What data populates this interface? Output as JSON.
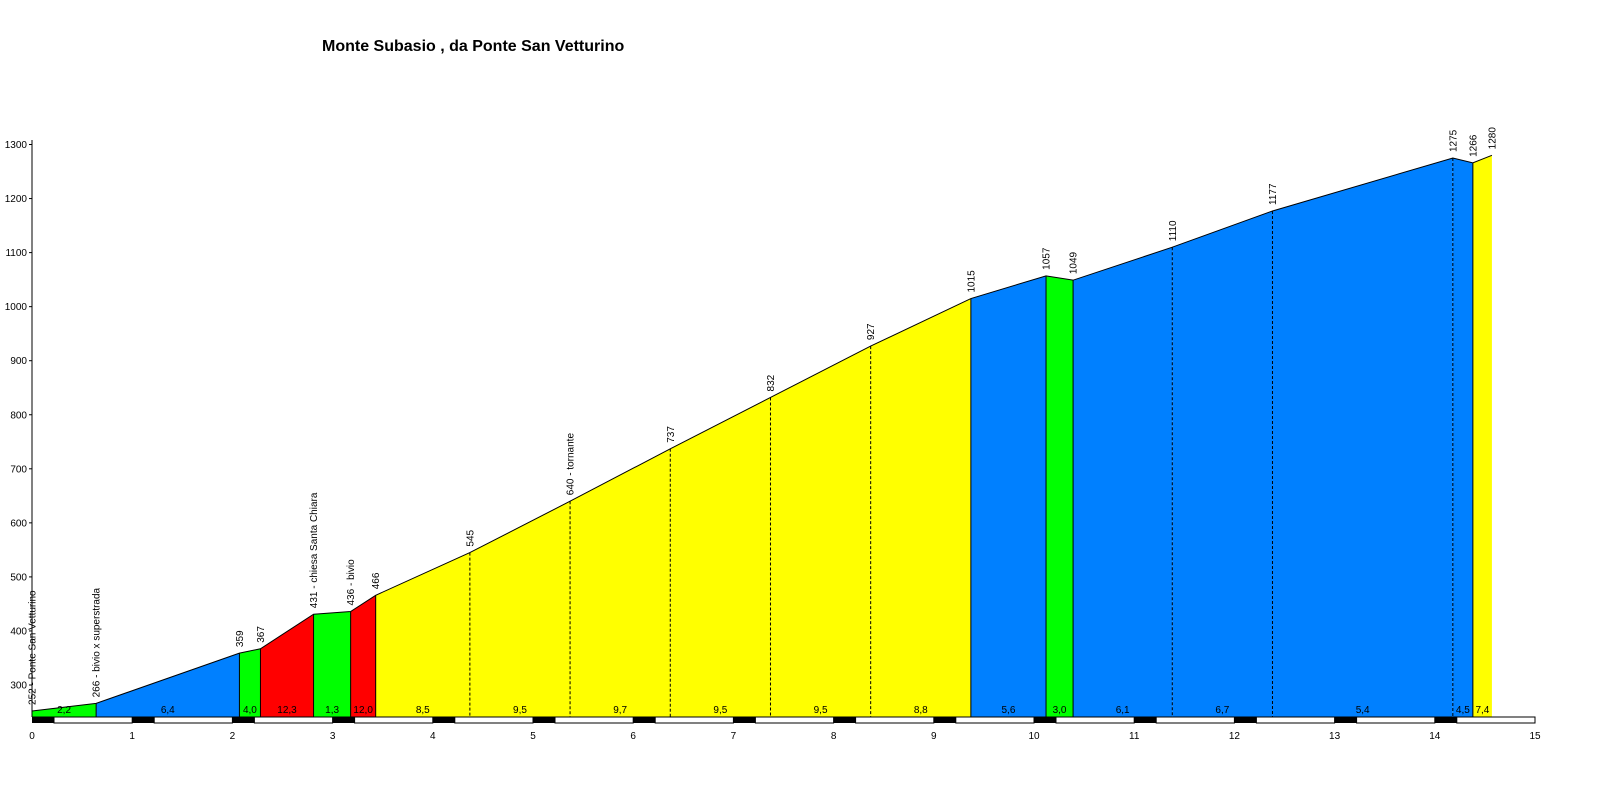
{
  "chart_data": {
    "type": "area",
    "title": "Monte Subasio , da Ponte San Vetturino",
    "xlabel": "",
    "ylabel": "",
    "xlim": [
      0,
      15
    ],
    "ylim": [
      230,
      1300
    ],
    "x_ticks": [
      "0",
      "1",
      "2",
      "3",
      "4",
      "5",
      "6",
      "7",
      "8",
      "9",
      "10",
      "11",
      "12",
      "13",
      "14",
      "15"
    ],
    "y_ticks": [
      "300",
      "400",
      "500",
      "600",
      "700",
      "800",
      "900",
      "1000",
      "1100",
      "1200",
      "1300"
    ],
    "gradient_colors": {
      "green": "#00ff00",
      "blue": "#0080ff",
      "red": "#ff0000",
      "yellow": "#ffff00"
    },
    "points": [
      {
        "x": 0,
        "y": 252,
        "label": "252 - Ponte San Vetturino"
      },
      {
        "x": 0.64,
        "y": 266,
        "label": "266 - bivio x superstrada"
      },
      {
        "x": 2.07,
        "y": 359,
        "label": "359"
      },
      {
        "x": 2.28,
        "y": 367,
        "label": "367"
      },
      {
        "x": 2.81,
        "y": 431,
        "label": "431 - chiesa Santa Chiara"
      },
      {
        "x": 3.18,
        "y": 436,
        "label": "436 - bivio"
      },
      {
        "x": 3.43,
        "y": 466,
        "label": "466"
      },
      {
        "x": 4.37,
        "y": 545,
        "label": "545"
      },
      {
        "x": 5.37,
        "y": 640,
        "label": "640 - tornante"
      },
      {
        "x": 6.37,
        "y": 737,
        "label": "737"
      },
      {
        "x": 7.37,
        "y": 832,
        "label": "832"
      },
      {
        "x": 8.37,
        "y": 927,
        "label": "927"
      },
      {
        "x": 9.37,
        "y": 1015,
        "label": "1015"
      },
      {
        "x": 10.12,
        "y": 1057,
        "label": "1057"
      },
      {
        "x": 10.39,
        "y": 1049,
        "label": "1049"
      },
      {
        "x": 11.38,
        "y": 1110,
        "label": "1110"
      },
      {
        "x": 12.38,
        "y": 1177,
        "label": "1177"
      },
      {
        "x": 14.18,
        "y": 1275,
        "label": "1275"
      },
      {
        "x": 14.38,
        "y": 1266,
        "label": "1266"
      },
      {
        "x": 14.57,
        "y": 1280,
        "label": "1280"
      }
    ],
    "segments": [
      {
        "gradient": "2,2",
        "color": "green"
      },
      {
        "gradient": "6,4",
        "color": "blue"
      },
      {
        "gradient": "4,0",
        "color": "green"
      },
      {
        "gradient": "12,3",
        "color": "red"
      },
      {
        "gradient": "1,3",
        "color": "green"
      },
      {
        "gradient": "12,0",
        "color": "red"
      },
      {
        "gradient": "8,5",
        "color": "yellow"
      },
      {
        "gradient": "9,5",
        "color": "yellow"
      },
      {
        "gradient": "9,7",
        "color": "yellow"
      },
      {
        "gradient": "9,5",
        "color": "yellow"
      },
      {
        "gradient": "9,5",
        "color": "yellow"
      },
      {
        "gradient": "8,8",
        "color": "yellow"
      },
      {
        "gradient": "5,6",
        "color": "blue"
      },
      {
        "gradient": "3,0",
        "color": "green"
      },
      {
        "gradient": "6,1",
        "color": "blue"
      },
      {
        "gradient": "6,7",
        "color": "blue"
      },
      {
        "gradient": "5,4",
        "color": "blue"
      },
      {
        "gradient": "4,5",
        "color": "blue"
      },
      {
        "gradient": "7,4",
        "color": "yellow"
      }
    ]
  }
}
